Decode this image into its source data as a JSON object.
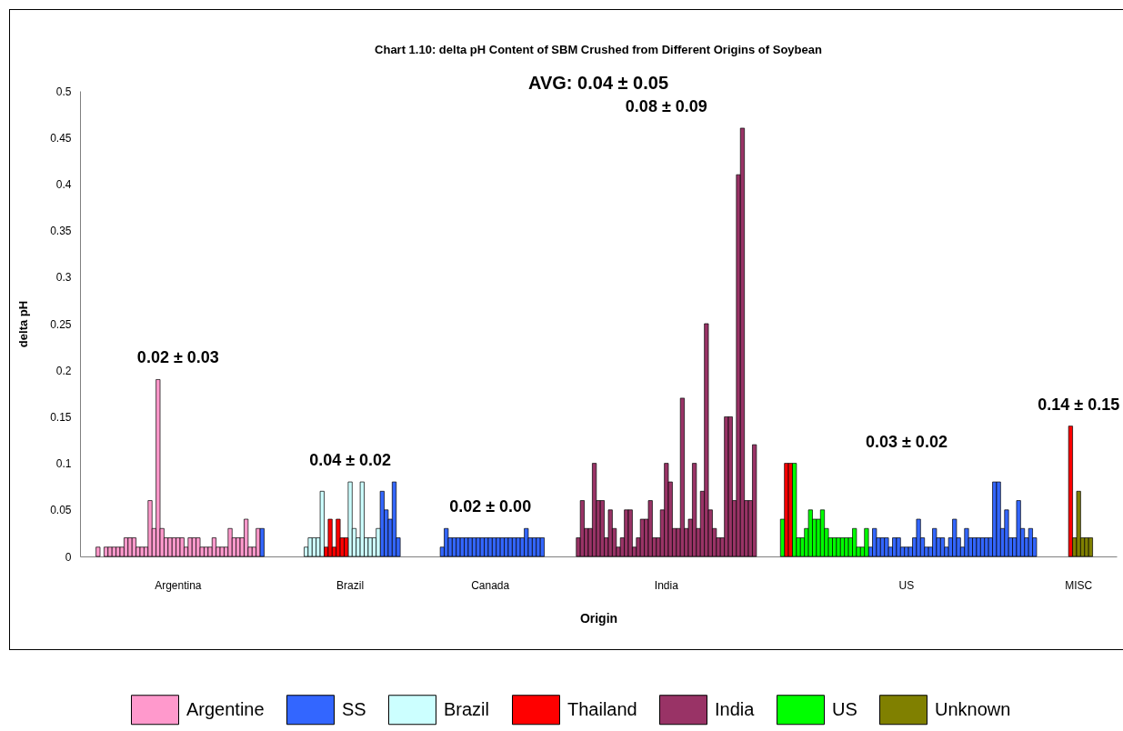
{
  "chart_data": {
    "type": "bar",
    "title": "Chart 1.10: delta pH Content of SBM Crushed from Different Origins of Soybean",
    "subtitle": "AVG: 0.04 ± 0.05",
    "xlabel": "Origin",
    "ylabel": "delta pH",
    "categories": [
      null,
      null,
      null,
      null,
      null,
      null,
      null,
      null,
      null,
      null,
      null,
      null,
      null,
      null,
      null,
      null,
      null,
      null,
      null,
      null,
      null,
      null,
      null,
      null,
      "Argentina",
      null,
      null,
      null,
      null,
      null,
      null,
      null,
      null,
      null,
      null,
      null,
      null,
      null,
      null,
      null,
      null,
      null,
      null,
      null,
      null,
      null,
      null,
      null,
      null,
      null,
      null,
      null,
      null,
      null,
      null,
      null,
      null,
      null,
      null,
      null,
      null,
      null,
      null,
      null,
      null,
      null,
      null,
      "Brazil",
      null,
      null,
      null,
      null,
      null,
      null,
      null,
      null,
      null,
      null,
      null,
      null,
      null,
      null,
      null,
      null,
      null,
      null,
      null,
      null,
      null,
      null,
      null,
      null,
      null,
      null,
      null,
      null,
      null,
      null,
      null,
      null,
      null,
      null,
      "Canada",
      null,
      null,
      null,
      null,
      null,
      null,
      null,
      null,
      null,
      null,
      null,
      null,
      null,
      null,
      null,
      null,
      null,
      null,
      null,
      null,
      null,
      null,
      null,
      null,
      null,
      null,
      null,
      null,
      null,
      null,
      null,
      null,
      null,
      null,
      null,
      null,
      null,
      null,
      null,
      null,
      null,
      null,
      null,
      "India",
      null,
      null,
      null,
      null,
      null,
      null,
      null,
      null,
      null,
      null,
      null,
      null,
      null,
      null,
      null,
      null,
      null,
      null,
      null,
      null,
      null,
      null,
      null,
      null,
      null,
      null,
      null,
      null,
      null,
      null,
      null,
      null,
      null,
      null,
      null,
      null,
      null,
      null,
      null,
      null,
      null,
      null,
      null,
      null,
      null,
      null,
      null,
      null,
      null,
      null,
      null,
      null,
      null,
      null,
      null,
      null,
      null,
      null,
      null,
      "US",
      null,
      null,
      null,
      null,
      null,
      null,
      null,
      null,
      null,
      null,
      null,
      null,
      null,
      null,
      null,
      null,
      null,
      null,
      null,
      null,
      null,
      null,
      null,
      null,
      null,
      null,
      null,
      null,
      null,
      null,
      null,
      null,
      null,
      null,
      null,
      null,
      null,
      null,
      null,
      null,
      null,
      null,
      "MISC",
      null,
      null,
      null,
      null,
      null,
      null,
      null,
      null,
      null
    ],
    "ylim": [
      0,
      0.5
    ],
    "yticks": [
      0,
      0.05,
      0.1,
      0.15,
      0.2,
      0.25,
      0.3,
      0.35,
      0.4,
      0.45,
      0.5
    ],
    "legend": "bottom",
    "series": [
      {
        "name": "Argentine",
        "color": "#ff99cc",
        "values": [
          null,
          null,
          null,
          null,
          0.01,
          null,
          0.01,
          0.01,
          0.01,
          0.01,
          0.01,
          0.02,
          0.02,
          0.02,
          0.01,
          0.01,
          0.01,
          0.06,
          0.03,
          0.19,
          0.03,
          0.02,
          0.02,
          0.02,
          0.02,
          0.02,
          0.01,
          0.02,
          0.02,
          0.02,
          0.01,
          0.01,
          0.01,
          0.02,
          0.01,
          0.01,
          0.01,
          0.03,
          0.02,
          0.02,
          0.02,
          0.04,
          0.01,
          0.01,
          0.03,
          null,
          null,
          null,
          null,
          null,
          null,
          null,
          null,
          null,
          null,
          null,
          null,
          null,
          null,
          null,
          null,
          null,
          null,
          null,
          null,
          null,
          null,
          null,
          null,
          null,
          null,
          null,
          null,
          null,
          null,
          null,
          null,
          null,
          null,
          null,
          null,
          null,
          null,
          null,
          null,
          null,
          null,
          null,
          null,
          null,
          null,
          null,
          null,
          null,
          null,
          null,
          null,
          null,
          null,
          null,
          null,
          null,
          null,
          null,
          null,
          null,
          null,
          null,
          null,
          null,
          null,
          null,
          null,
          null,
          null,
          null,
          null,
          null,
          null,
          null,
          null,
          null,
          null,
          null,
          null,
          null,
          null,
          null,
          null,
          null,
          null,
          null,
          null,
          null,
          null,
          null,
          null,
          null,
          null,
          null,
          null,
          null,
          null,
          null,
          null,
          null,
          null,
          null,
          null,
          null,
          null,
          null,
          null,
          null,
          null,
          null,
          null,
          null,
          null,
          null,
          null,
          null,
          null,
          null,
          null,
          null,
          null,
          null,
          null,
          null,
          null,
          null,
          null,
          null,
          null,
          null,
          null,
          null,
          null,
          null,
          null,
          null,
          null,
          null,
          null,
          null,
          null,
          null,
          null,
          null,
          null,
          null,
          null,
          null,
          null,
          null,
          null,
          null,
          null,
          null,
          null,
          null,
          null,
          null,
          null,
          null,
          null,
          null,
          null,
          null,
          null,
          null,
          null,
          null,
          null,
          null,
          null,
          null,
          null,
          null,
          null,
          null,
          null,
          null,
          null,
          null,
          null,
          null,
          null,
          null,
          null,
          null,
          null,
          null,
          null,
          null,
          null,
          null,
          null,
          null,
          null,
          null,
          null,
          null,
          null,
          null,
          null,
          null,
          null,
          null,
          null,
          null,
          null,
          null,
          null,
          null,
          null,
          null,
          null
        ]
      },
      {
        "name": "SS",
        "color": "#3366ff",
        "values": [
          null,
          null,
          null,
          null,
          null,
          null,
          null,
          null,
          null,
          null,
          null,
          null,
          null,
          null,
          null,
          null,
          null,
          null,
          null,
          null,
          null,
          null,
          null,
          null,
          null,
          null,
          null,
          null,
          null,
          null,
          null,
          null,
          null,
          null,
          null,
          null,
          null,
          null,
          null,
          null,
          null,
          null,
          null,
          null,
          null,
          0.03,
          null,
          null,
          null,
          null,
          null,
          null,
          null,
          null,
          null,
          null,
          null,
          null,
          null,
          null,
          null,
          null,
          null,
          null,
          null,
          null,
          null,
          null,
          null,
          null,
          null,
          null,
          null,
          null,
          null,
          0.07,
          0.05,
          0.04,
          0.08,
          0.02,
          null,
          null,
          null,
          null,
          null,
          null,
          null,
          null,
          null,
          null,
          0.01,
          0.03,
          0.02,
          0.02,
          0.02,
          0.02,
          0.02,
          0.02,
          0.02,
          0.02,
          0.02,
          0.02,
          0.02,
          0.02,
          0.02,
          0.02,
          0.02,
          0.02,
          0.02,
          0.02,
          0.02,
          0.03,
          0.02,
          0.02,
          0.02,
          0.02,
          null,
          null,
          null,
          null,
          null,
          null,
          null,
          null,
          null,
          null,
          null,
          null,
          null,
          null,
          null,
          null,
          null,
          null,
          null,
          null,
          null,
          null,
          null,
          null,
          null,
          null,
          null,
          null,
          null,
          null,
          null,
          null,
          null,
          null,
          null,
          null,
          null,
          null,
          null,
          null,
          null,
          null,
          null,
          null,
          null,
          null,
          null,
          null,
          null,
          null,
          null,
          null,
          null,
          null,
          null,
          null,
          null,
          null,
          null,
          null,
          null,
          null,
          null,
          null,
          null,
          null,
          null,
          null,
          null,
          null,
          null,
          null,
          null,
          null,
          null,
          null,
          null,
          null,
          null,
          null,
          null,
          0.01,
          0.03,
          0.02,
          0.02,
          0.02,
          0.01,
          0.02,
          0.02,
          0.01,
          0.01,
          0.01,
          0.02,
          0.04,
          0.02,
          0.01,
          0.01,
          0.03,
          0.02,
          0.02,
          0.01,
          0.02,
          0.04,
          0.02,
          0.01,
          0.03,
          0.02,
          0.02,
          0.02,
          0.02,
          0.02,
          0.02,
          0.08,
          0.08,
          0.03,
          0.05,
          0.02,
          0.02,
          0.06,
          0.03,
          0.02,
          0.03,
          0.02,
          null,
          null,
          null,
          null,
          null,
          null,
          null,
          null,
          null,
          null,
          null,
          null,
          null,
          null,
          null,
          null,
          null,
          null,
          null,
          null
        ]
      },
      {
        "name": "Brazil",
        "color": "#ccffff",
        "values": [
          null,
          null,
          null,
          null,
          null,
          null,
          null,
          null,
          null,
          null,
          null,
          null,
          null,
          null,
          null,
          null,
          null,
          null,
          null,
          null,
          null,
          null,
          null,
          null,
          null,
          null,
          null,
          null,
          null,
          null,
          null,
          null,
          null,
          null,
          null,
          null,
          null,
          null,
          null,
          null,
          null,
          null,
          null,
          null,
          null,
          null,
          null,
          null,
          null,
          null,
          null,
          null,
          null,
          null,
          null,
          null,
          0.01,
          0.02,
          0.02,
          0.02,
          0.07,
          null,
          null,
          null,
          null,
          null,
          null,
          0.08,
          0.03,
          0.02,
          0.08,
          0.02,
          0.02,
          0.02,
          0.03,
          null,
          null,
          null,
          null,
          null,
          null,
          null,
          null,
          null,
          null,
          null,
          null,
          null,
          null,
          null,
          null,
          null,
          null,
          null,
          null,
          null,
          null,
          null,
          null,
          null,
          null,
          null,
          null,
          null,
          null,
          null,
          null,
          null,
          null,
          null,
          null,
          null,
          null,
          null,
          null,
          null,
          null,
          null,
          null,
          null,
          null,
          null,
          null,
          null,
          null,
          null,
          null,
          null,
          null,
          null,
          null,
          null,
          null,
          null,
          null,
          null,
          null,
          null,
          null,
          null,
          null,
          null,
          null,
          null,
          null,
          null,
          null,
          null,
          null,
          null,
          null,
          null,
          null,
          null,
          null,
          null,
          null,
          null,
          null,
          null,
          null,
          null,
          null,
          null,
          null,
          null,
          null,
          null,
          null,
          null,
          null,
          null,
          null,
          null,
          null,
          null,
          null,
          null,
          null,
          null,
          null,
          null,
          null,
          null,
          null,
          null,
          null,
          null,
          null,
          null,
          null,
          null,
          null,
          null,
          null,
          null,
          null,
          null,
          null,
          null,
          null,
          null,
          null,
          null,
          null,
          null,
          null,
          null,
          null,
          null,
          null,
          null,
          null,
          null,
          null,
          null,
          null,
          null,
          null,
          null,
          null,
          null,
          null,
          null,
          null,
          null,
          null,
          null,
          null,
          null,
          null,
          null,
          null,
          null,
          null,
          null,
          null,
          null,
          null,
          null,
          null,
          null,
          null,
          null,
          null,
          null,
          null,
          null,
          null,
          null,
          null,
          null,
          null,
          null,
          null,
          null,
          null,
          null,
          null
        ]
      },
      {
        "name": "Thailand",
        "color": "#ff0000",
        "values": [
          null,
          null,
          null,
          null,
          null,
          null,
          null,
          null,
          null,
          null,
          null,
          null,
          null,
          null,
          null,
          null,
          null,
          null,
          null,
          null,
          null,
          null,
          null,
          null,
          null,
          null,
          null,
          null,
          null,
          null,
          null,
          null,
          null,
          null,
          null,
          null,
          null,
          null,
          null,
          null,
          null,
          null,
          null,
          null,
          null,
          null,
          null,
          null,
          null,
          null,
          null,
          null,
          null,
          null,
          null,
          null,
          null,
          null,
          null,
          null,
          null,
          0.01,
          0.04,
          0.01,
          0.04,
          0.02,
          0.02,
          null,
          null,
          null,
          null,
          null,
          null,
          null,
          null,
          null,
          null,
          null,
          null,
          null,
          null,
          null,
          null,
          null,
          null,
          null,
          null,
          null,
          null,
          null,
          null,
          null,
          null,
          null,
          null,
          null,
          null,
          null,
          null,
          null,
          null,
          null,
          null,
          null,
          null,
          null,
          null,
          null,
          null,
          null,
          null,
          null,
          null,
          null,
          null,
          null,
          null,
          null,
          null,
          null,
          null,
          null,
          null,
          null,
          null,
          null,
          null,
          null,
          null,
          null,
          null,
          null,
          null,
          null,
          null,
          null,
          null,
          null,
          null,
          null,
          null,
          null,
          null,
          null,
          null,
          null,
          null,
          null,
          null,
          null,
          null,
          null,
          null,
          null,
          null,
          null,
          null,
          null,
          null,
          null,
          null,
          null,
          null,
          null,
          null,
          null,
          null,
          null,
          null,
          null,
          null,
          null,
          null,
          null,
          null,
          null,
          0.1,
          0.1,
          null,
          null,
          null,
          null,
          null,
          null,
          null,
          null,
          null,
          null,
          null,
          null,
          null,
          null,
          null,
          null,
          null,
          null,
          null,
          null,
          null,
          null,
          null,
          null,
          null,
          null,
          null,
          null,
          null,
          null,
          null,
          null,
          null,
          null,
          null,
          null,
          null,
          null,
          null,
          null,
          null,
          null,
          null,
          null,
          null,
          null,
          null,
          null,
          null,
          null,
          null,
          null,
          null,
          null,
          null,
          null,
          null,
          null,
          null,
          null,
          null,
          null,
          null,
          null,
          null,
          null,
          null,
          null,
          null,
          0.14,
          null,
          null,
          null,
          null,
          null,
          null,
          null,
          null,
          null,
          null,
          null
        ]
      },
      {
        "name": "India",
        "color": "#993366",
        "values": [
          null,
          null,
          null,
          null,
          null,
          null,
          null,
          null,
          null,
          null,
          null,
          null,
          null,
          null,
          null,
          null,
          null,
          null,
          null,
          null,
          null,
          null,
          null,
          null,
          null,
          null,
          null,
          null,
          null,
          null,
          null,
          null,
          null,
          null,
          null,
          null,
          null,
          null,
          null,
          null,
          null,
          null,
          null,
          null,
          null,
          null,
          null,
          null,
          null,
          null,
          null,
          null,
          null,
          null,
          null,
          null,
          null,
          null,
          null,
          null,
          null,
          null,
          null,
          null,
          null,
          null,
          null,
          null,
          null,
          null,
          null,
          null,
          null,
          null,
          null,
          null,
          null,
          null,
          null,
          null,
          null,
          null,
          null,
          null,
          null,
          null,
          null,
          null,
          null,
          null,
          null,
          null,
          null,
          null,
          null,
          null,
          null,
          null,
          null,
          null,
          null,
          null,
          null,
          null,
          null,
          null,
          null,
          null,
          null,
          null,
          null,
          null,
          null,
          null,
          null,
          null,
          null,
          null,
          null,
          null,
          null,
          null,
          null,
          null,
          0.02,
          0.06,
          0.03,
          0.03,
          0.1,
          0.06,
          0.06,
          0.02,
          0.05,
          0.03,
          0.01,
          0.02,
          0.05,
          0.05,
          0.01,
          0.02,
          0.04,
          0.04,
          0.06,
          0.02,
          0.02,
          0.05,
          0.1,
          0.08,
          0.03,
          0.03,
          0.17,
          0.03,
          0.04,
          0.1,
          0.03,
          0.07,
          0.25,
          0.05,
          0.03,
          0.02,
          0.02,
          0.15,
          0.15,
          0.06,
          0.41,
          0.46,
          0.06,
          0.06,
          0.12,
          null,
          null,
          null,
          null,
          null,
          null,
          null,
          null,
          null,
          null,
          null,
          null,
          null,
          null,
          null,
          null,
          null,
          null,
          null,
          null,
          null,
          null,
          null,
          null,
          null,
          null,
          null,
          null,
          null,
          null,
          null,
          null,
          null,
          null,
          null,
          null,
          null,
          null,
          null,
          null,
          null,
          null,
          null,
          null,
          null,
          null,
          null,
          null,
          null,
          null,
          null,
          null,
          null,
          null,
          null,
          null,
          null,
          null,
          null,
          null,
          null,
          null,
          null,
          null,
          null,
          null,
          null,
          null,
          null,
          null,
          null,
          null,
          null,
          null,
          null,
          null,
          null,
          null,
          null,
          null,
          null,
          null,
          null,
          null,
          null,
          null,
          null,
          null,
          null,
          null
        ]
      },
      {
        "name": "US",
        "color": "#00ff00",
        "values": [
          null,
          null,
          null,
          null,
          null,
          null,
          null,
          null,
          null,
          null,
          null,
          null,
          null,
          null,
          null,
          null,
          null,
          null,
          null,
          null,
          null,
          null,
          null,
          null,
          null,
          null,
          null,
          null,
          null,
          null,
          null,
          null,
          null,
          null,
          null,
          null,
          null,
          null,
          null,
          null,
          null,
          null,
          null,
          null,
          null,
          null,
          null,
          null,
          null,
          null,
          null,
          null,
          null,
          null,
          null,
          null,
          null,
          null,
          null,
          null,
          null,
          null,
          null,
          null,
          null,
          null,
          null,
          null,
          null,
          null,
          null,
          null,
          null,
          null,
          null,
          null,
          null,
          null,
          null,
          null,
          null,
          null,
          null,
          null,
          null,
          null,
          null,
          null,
          null,
          null,
          null,
          null,
          null,
          null,
          null,
          null,
          null,
          null,
          null,
          null,
          null,
          null,
          null,
          null,
          null,
          null,
          null,
          null,
          null,
          null,
          null,
          null,
          null,
          null,
          null,
          null,
          null,
          null,
          null,
          null,
          null,
          null,
          null,
          null,
          null,
          null,
          null,
          null,
          null,
          null,
          null,
          null,
          null,
          null,
          null,
          null,
          null,
          null,
          null,
          null,
          null,
          null,
          null,
          null,
          null,
          null,
          null,
          null,
          null,
          null,
          null,
          null,
          null,
          null,
          null,
          null,
          null,
          null,
          null,
          null,
          null,
          null,
          null,
          null,
          null,
          null,
          null,
          null,
          null,
          null,
          null,
          null,
          null,
          null,
          null,
          0.04,
          null,
          null,
          0.1,
          0.02,
          0.02,
          0.03,
          0.05,
          0.04,
          0.04,
          0.05,
          0.03,
          0.02,
          0.02,
          0.02,
          0.02,
          0.02,
          0.02,
          0.03,
          0.01,
          0.01,
          0.03,
          null,
          null,
          null,
          null,
          null,
          null,
          null,
          null,
          null,
          null,
          null,
          null,
          null,
          null,
          null,
          null,
          null,
          null,
          null,
          null,
          null,
          null,
          null,
          null,
          null,
          null,
          null,
          null,
          null,
          null,
          null,
          null,
          null,
          null,
          null,
          null,
          null,
          null,
          null,
          null,
          null,
          null,
          null,
          null,
          null,
          null,
          null,
          null,
          null,
          null,
          null,
          null,
          null,
          null,
          null,
          null,
          null,
          null,
          null,
          null,
          null,
          null
        ]
      },
      {
        "name": "Unknown",
        "color": "#808000",
        "values": [
          null,
          null,
          null,
          null,
          null,
          null,
          null,
          null,
          null,
          null,
          null,
          null,
          null,
          null,
          null,
          null,
          null,
          null,
          null,
          null,
          null,
          null,
          null,
          null,
          null,
          null,
          null,
          null,
          null,
          null,
          null,
          null,
          null,
          null,
          null,
          null,
          null,
          null,
          null,
          null,
          null,
          null,
          null,
          null,
          null,
          null,
          null,
          null,
          null,
          null,
          null,
          null,
          null,
          null,
          null,
          null,
          null,
          null,
          null,
          null,
          null,
          null,
          null,
          null,
          null,
          null,
          null,
          null,
          null,
          null,
          null,
          null,
          null,
          null,
          null,
          null,
          null,
          null,
          null,
          null,
          null,
          null,
          null,
          null,
          null,
          null,
          null,
          null,
          null,
          null,
          null,
          null,
          null,
          null,
          null,
          null,
          null,
          null,
          null,
          null,
          null,
          null,
          null,
          null,
          null,
          null,
          null,
          null,
          null,
          null,
          null,
          null,
          null,
          null,
          null,
          null,
          null,
          null,
          null,
          null,
          null,
          null,
          null,
          null,
          null,
          null,
          null,
          null,
          null,
          null,
          null,
          null,
          null,
          null,
          null,
          null,
          null,
          null,
          null,
          null,
          null,
          null,
          null,
          null,
          null,
          null,
          null,
          null,
          null,
          null,
          null,
          null,
          null,
          null,
          null,
          null,
          null,
          null,
          null,
          null,
          null,
          null,
          null,
          null,
          null,
          null,
          null,
          null,
          null,
          null,
          null,
          null,
          null,
          null,
          null,
          null,
          null,
          null,
          null,
          null,
          null,
          null,
          null,
          null,
          null,
          null,
          null,
          null,
          null,
          null,
          null,
          null,
          null,
          null,
          null,
          null,
          null,
          null,
          null,
          null,
          null,
          null,
          null,
          null,
          null,
          null,
          null,
          null,
          null,
          null,
          null,
          null,
          null,
          null,
          null,
          null,
          null,
          null,
          null,
          null,
          null,
          null,
          null,
          null,
          null,
          null,
          null,
          null,
          null,
          null,
          null,
          null,
          null,
          null,
          null,
          null,
          null,
          null,
          null,
          null,
          null,
          null,
          null,
          null,
          null,
          null,
          null,
          null,
          0.02,
          0.07,
          0.02,
          0.02,
          0.02,
          null,
          null,
          null,
          null,
          null,
          null
        ]
      }
    ],
    "annotations": [
      "0.02 ± 0.03",
      "0.04 ± 0.02",
      "0.02 ± 0.00",
      "0.08 ± 0.09",
      "0.03 ± 0.02",
      "0.14 ± 0.15"
    ]
  }
}
